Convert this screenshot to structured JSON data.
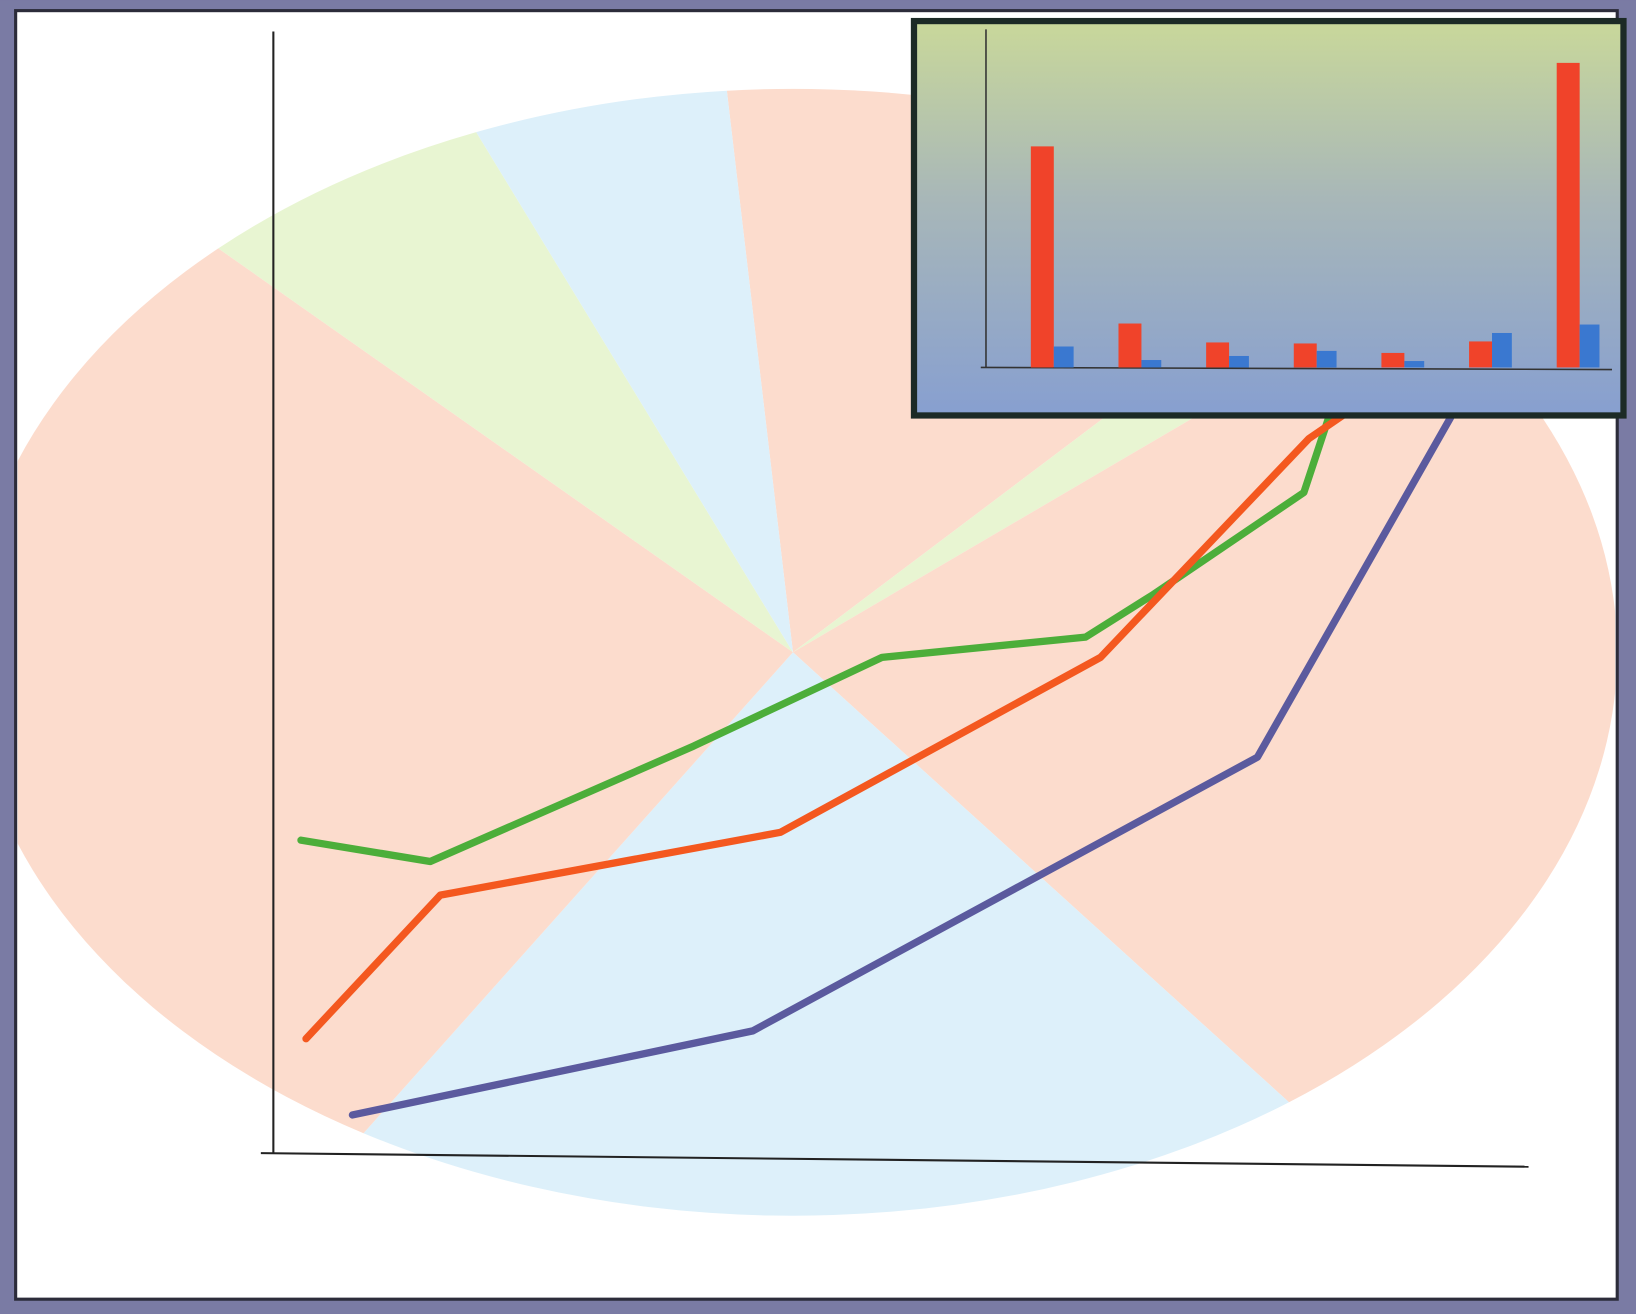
{
  "chart_data": [
    {
      "type": "pie",
      "categories": [
        null,
        null,
        null,
        null,
        null,
        null,
        null
      ],
      "values": [
        13,
        2,
        26,
        19,
        29,
        6,
        5
      ],
      "colors": [
        "#fcdccd",
        "#e8f5d2",
        "#fcdccd",
        "#ddf0fa",
        "#fcdccd",
        "#e8f5d2",
        "#ddf0fa"
      ]
    },
    {
      "type": "line",
      "xlim": [
        0,
        100
      ],
      "ylim": [
        0,
        100
      ],
      "grid": false,
      "series": [
        {
          "color": "#4cae3a",
          "x": [
            2.2,
            12.5,
            33.5,
            48.5,
            64.7,
            70.1,
            82.1,
            84.2
          ],
          "values": [
            27.9,
            26.0,
            36.3,
            44.2,
            46.0,
            49.8,
            58.9,
            66.0
          ]
        },
        {
          "color": "#f4581f",
          "x": [
            2.6,
            13.3,
            40.4,
            65.9,
            82.5,
            85.5
          ],
          "values": [
            10.2,
            23.0,
            28.6,
            44.2,
            63.7,
            66.0
          ]
        },
        {
          "color": "#5b5a9e",
          "x": [
            6.3,
            38.2,
            78.4,
            93.8
          ],
          "values": [
            3.4,
            10.9,
            35.3,
            65.6
          ]
        }
      ]
    },
    {
      "type": "bar",
      "categories": [
        null,
        null,
        null,
        null,
        null,
        null,
        null
      ],
      "ylim": [
        0,
        100
      ],
      "grid": false,
      "series": [
        {
          "color": "#f0432a",
          "values": [
            65.4,
            13.0,
            7.4,
            7.1,
            4.3,
            7.7,
            90.1
          ]
        },
        {
          "color": "#3a78d0",
          "values": [
            6.2,
            2.2,
            3.4,
            4.9,
            1.9,
            10.2,
            12.7
          ]
        }
      ]
    }
  ]
}
